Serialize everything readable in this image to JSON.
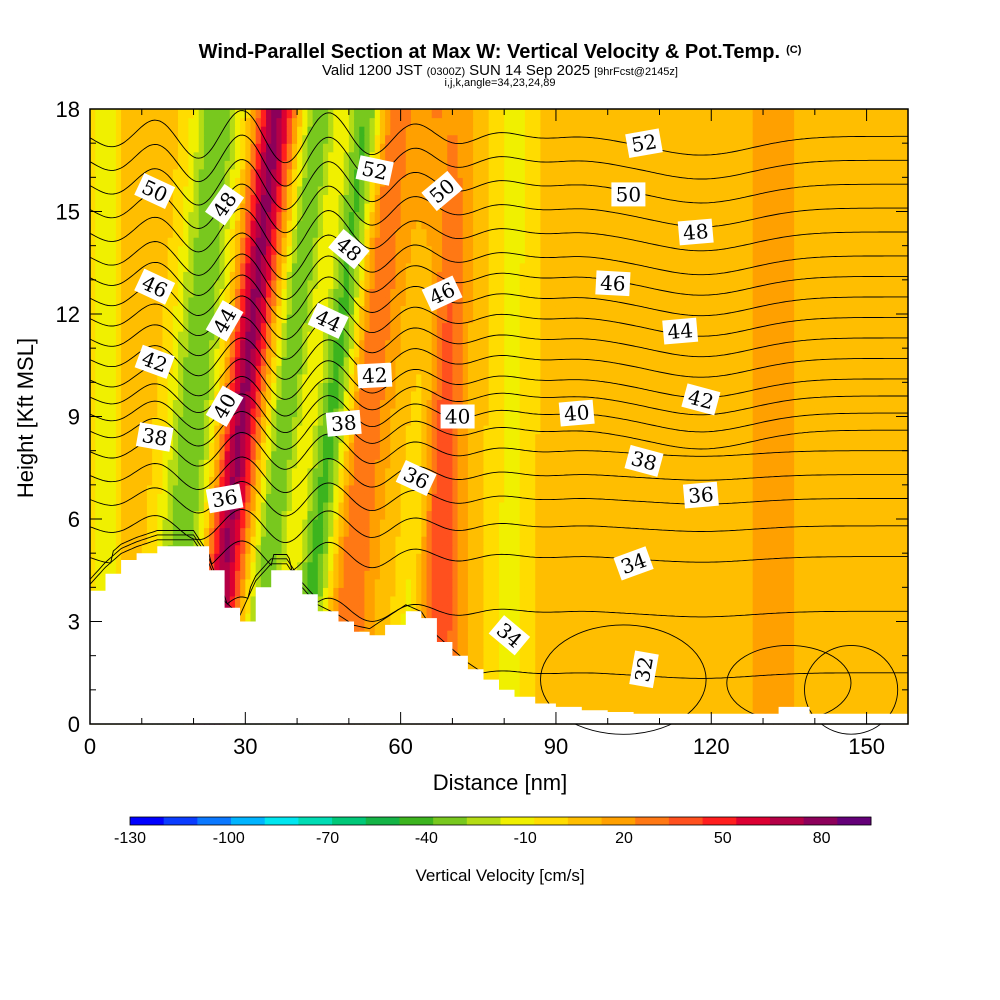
{
  "chart_data": {
    "type": "heatmap",
    "title": "Wind-Parallel Section at Max W: Vertical Velocity & Pot.Temp.",
    "title_mark": "(C)",
    "subtitle": {
      "prefix": "Valid 1200 JST",
      "utc": "(0300Z)",
      "date": "SUN 14 Sep 2025",
      "fcst": "[9hrFcst@2145z]"
    },
    "grid_info": "i,j,k,angle=34,23,24,89",
    "xlabel": "Distance [nm]",
    "ylabel": "Height [Kft MSL]",
    "xlim": [
      0,
      158
    ],
    "ylim": [
      0,
      18
    ],
    "x_ticks": [
      "0",
      "30",
      "60",
      "90",
      "120",
      "150"
    ],
    "x_tick_values": [
      0,
      30,
      60,
      90,
      120,
      150
    ],
    "y_ticks": [
      "0",
      "3",
      "6",
      "9",
      "12",
      "15",
      "18"
    ],
    "y_tick_values": [
      0,
      3,
      6,
      9,
      12,
      15,
      18
    ],
    "colorbar": {
      "label": "Vertical Velocity [cm/s]",
      "tick_labels": [
        "-130",
        "-100",
        "-70",
        "-40",
        "-10",
        "20",
        "50",
        "80"
      ],
      "tick_values": [
        -130,
        -100,
        -70,
        -40,
        -10,
        20,
        50,
        80
      ],
      "range": [
        -130,
        95
      ],
      "colors": [
        "#0000ff",
        "#0a3cff",
        "#0a78ff",
        "#00b4ff",
        "#00e6f0",
        "#00dcb4",
        "#00c878",
        "#14b446",
        "#3cb41e",
        "#78c81e",
        "#b4dc14",
        "#f0f000",
        "#ffdc00",
        "#ffbe00",
        "#ffa000",
        "#ff7814",
        "#ff501e",
        "#ff1e1e",
        "#dc0032",
        "#b40046",
        "#8c005a",
        "#640078"
      ]
    },
    "vertical_velocity_bands": [
      {
        "center_nm": 3,
        "halfwidth_nm": 2.5,
        "w_cm_s": -25,
        "shift_nm_per_kft": 0
      },
      {
        "center_nm": 15,
        "halfwidth_nm": 5,
        "w_cm_s": -45,
        "shift_nm_per_kft": 0.55
      },
      {
        "center_nm": 22.5,
        "halfwidth_nm": 3.5,
        "w_cm_s": 70,
        "shift_nm_per_kft": 0.75
      },
      {
        "center_nm": 31,
        "halfwidth_nm": 3.5,
        "w_cm_s": -45,
        "shift_nm_per_kft": 0.75
      },
      {
        "center_nm": 40,
        "halfwidth_nm": 3.5,
        "w_cm_s": -50,
        "shift_nm_per_kft": 0.75
      },
      {
        "center_nm": 48,
        "halfwidth_nm": 4,
        "w_cm_s": 25,
        "shift_nm_per_kft": 0.6
      },
      {
        "center_nm": 60,
        "halfwidth_nm": 3,
        "w_cm_s": -20,
        "shift_nm_per_kft": 0.5
      },
      {
        "center_nm": 67,
        "halfwidth_nm": 4,
        "w_cm_s": 35,
        "shift_nm_per_kft": 0.1
      },
      {
        "center_nm": 81,
        "halfwidth_nm": 4.5,
        "w_cm_s": -18,
        "shift_nm_per_kft": 0.05
      },
      {
        "center_nm": 132,
        "halfwidth_nm": 6,
        "w_cm_s": 8,
        "shift_nm_per_kft": 0
      }
    ],
    "vertical_velocity_background_cm_s": 8,
    "terrain": {
      "x_nm": [
        0,
        3,
        6,
        9,
        13,
        16,
        20,
        23,
        26,
        29,
        32,
        35,
        38,
        41,
        44,
        48,
        51,
        54,
        57,
        61,
        64,
        67,
        70,
        73,
        76,
        79,
        82,
        86,
        90,
        95,
        100,
        105,
        110,
        115,
        120,
        125,
        130,
        133,
        136,
        139,
        142,
        146,
        150,
        155,
        158
      ],
      "height_kft": [
        3.9,
        4.4,
        4.8,
        5.0,
        5.2,
        5.2,
        5.2,
        4.5,
        3.4,
        3.0,
        4.0,
        4.5,
        4.5,
        3.8,
        3.3,
        3.0,
        2.7,
        2.6,
        2.9,
        3.3,
        3.1,
        2.4,
        2.0,
        1.6,
        1.3,
        1.0,
        0.8,
        0.6,
        0.5,
        0.4,
        0.35,
        0.3,
        0.3,
        0.3,
        0.3,
        0.3,
        0.3,
        0.5,
        0.5,
        0.3,
        0.3,
        0.3,
        0.3,
        0.3,
        0.3
      ]
    },
    "theta_isentropes": [
      {
        "value": 32,
        "base_kft": 1.5
      },
      {
        "value": 33,
        "base_kft": 3.3
      },
      {
        "value": 34,
        "base_kft": 4.9
      },
      {
        "value": 35,
        "base_kft": 5.8
      },
      {
        "value": 36,
        "base_kft": 6.6
      },
      {
        "value": 37,
        "base_kft": 7.3
      },
      {
        "value": 38,
        "base_kft": 8.0
      },
      {
        "value": 39,
        "base_kft": 8.6
      },
      {
        "value": 40,
        "base_kft": 9.1
      },
      {
        "value": 41,
        "base_kft": 9.6
      },
      {
        "value": 42,
        "base_kft": 10.1
      },
      {
        "value": 43,
        "base_kft": 10.7
      },
      {
        "value": 44,
        "base_kft": 11.3
      },
      {
        "value": 45,
        "base_kft": 11.9
      },
      {
        "value": 46,
        "base_kft": 12.5
      },
      {
        "value": 47,
        "base_kft": 13.1
      },
      {
        "value": 48,
        "base_kft": 13.7
      },
      {
        "value": 49,
        "base_kft": 14.4
      },
      {
        "value": 50,
        "base_kft": 15.1
      },
      {
        "value": 51,
        "base_kft": 15.8
      },
      {
        "value": 52,
        "base_kft": 16.5
      },
      {
        "value": 53,
        "base_kft": 17.2
      }
    ],
    "contour_labels": [
      {
        "text": "50",
        "x_nm": 12.5,
        "y_kft": 15.6,
        "angle": 25
      },
      {
        "text": "48",
        "x_nm": 26,
        "y_kft": 15.2,
        "angle": -55
      },
      {
        "text": "52",
        "x_nm": 55,
        "y_kft": 16.2,
        "angle": 12
      },
      {
        "text": "50",
        "x_nm": 68,
        "y_kft": 15.6,
        "angle": -40
      },
      {
        "text": "52",
        "x_nm": 107,
        "y_kft": 17.0,
        "angle": -10
      },
      {
        "text": "50",
        "x_nm": 104,
        "y_kft": 15.5,
        "angle": 0
      },
      {
        "text": "48",
        "x_nm": 50,
        "y_kft": 13.9,
        "angle": 40
      },
      {
        "text": "48",
        "x_nm": 117,
        "y_kft": 14.4,
        "angle": -5
      },
      {
        "text": "46",
        "x_nm": 12.5,
        "y_kft": 12.8,
        "angle": 25
      },
      {
        "text": "46",
        "x_nm": 68,
        "y_kft": 12.6,
        "angle": -25
      },
      {
        "text": "46",
        "x_nm": 101,
        "y_kft": 12.9,
        "angle": 3
      },
      {
        "text": "44",
        "x_nm": 26,
        "y_kft": 11.8,
        "angle": -60
      },
      {
        "text": "44",
        "x_nm": 46,
        "y_kft": 11.8,
        "angle": 25
      },
      {
        "text": "44",
        "x_nm": 114,
        "y_kft": 11.5,
        "angle": -5
      },
      {
        "text": "42",
        "x_nm": 12.5,
        "y_kft": 10.6,
        "angle": 20
      },
      {
        "text": "42",
        "x_nm": 55,
        "y_kft": 10.2,
        "angle": -3
      },
      {
        "text": "42",
        "x_nm": 118,
        "y_kft": 9.5,
        "angle": 15
      },
      {
        "text": "40",
        "x_nm": 26,
        "y_kft": 9.3,
        "angle": -60
      },
      {
        "text": "40",
        "x_nm": 71,
        "y_kft": 9.0,
        "angle": 0
      },
      {
        "text": "40",
        "x_nm": 94,
        "y_kft": 9.1,
        "angle": -5
      },
      {
        "text": "38",
        "x_nm": 12.5,
        "y_kft": 8.4,
        "angle": 10
      },
      {
        "text": "38",
        "x_nm": 49,
        "y_kft": 8.8,
        "angle": -5
      },
      {
        "text": "38",
        "x_nm": 107,
        "y_kft": 7.7,
        "angle": 15
      },
      {
        "text": "36",
        "x_nm": 26,
        "y_kft": 6.6,
        "angle": -10
      },
      {
        "text": "36",
        "x_nm": 63,
        "y_kft": 7.2,
        "angle": 25
      },
      {
        "text": "36",
        "x_nm": 118,
        "y_kft": 6.7,
        "angle": -5
      },
      {
        "text": "34",
        "x_nm": 105,
        "y_kft": 4.7,
        "angle": -20
      },
      {
        "text": "34",
        "x_nm": 81,
        "y_kft": 2.6,
        "angle": 40
      },
      {
        "text": "32",
        "x_nm": 107,
        "y_kft": 1.6,
        "angle": -80
      }
    ]
  }
}
